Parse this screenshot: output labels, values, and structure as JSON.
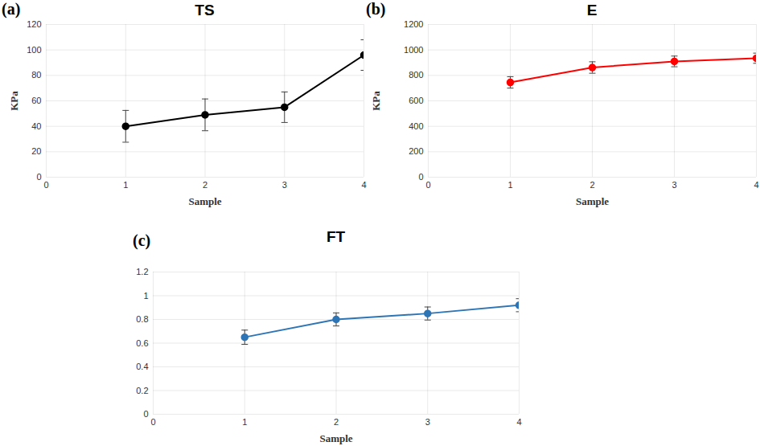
{
  "chart_data": [
    {
      "type": "line",
      "annotation": "(a)",
      "title": "TS",
      "x_label": "Sample",
      "y_label": "KPa",
      "x": [
        1,
        2,
        3,
        4
      ],
      "values": [
        40,
        49,
        55,
        96
      ],
      "errors": [
        12.5,
        12.5,
        12,
        12
      ],
      "color": "#000000",
      "marker": "circle",
      "xlim": [
        0,
        4
      ],
      "xticks": [
        0,
        1,
        2,
        3,
        4
      ],
      "ylim": [
        0,
        120
      ],
      "yticks": [
        0,
        20,
        40,
        60,
        80,
        100,
        120
      ],
      "grid": true
    },
    {
      "type": "line",
      "annotation": "(b)",
      "title": "E",
      "x_label": "Sample",
      "y_label": "KPa",
      "x": [
        1,
        2,
        3,
        4
      ],
      "values": [
        745,
        862,
        910,
        935
      ],
      "errors": [
        45,
        45,
        42,
        40
      ],
      "color": "#ff0000",
      "marker": "circle",
      "xlim": [
        0,
        4
      ],
      "xticks": [
        0,
        1,
        2,
        3,
        4
      ],
      "ylim": [
        0,
        1200
      ],
      "yticks": [
        0,
        200,
        400,
        600,
        800,
        1000,
        1200
      ],
      "grid": true
    },
    {
      "type": "line",
      "annotation": "(c)",
      "title": "FT",
      "x_label": "Sample",
      "x": [
        1,
        2,
        3,
        4
      ],
      "values": [
        0.65,
        0.8,
        0.85,
        0.92
      ],
      "errors": [
        0.06,
        0.055,
        0.055,
        0.055
      ],
      "color": "#2e75b6",
      "marker": "circle",
      "xlim": [
        0,
        4
      ],
      "xticks": [
        0,
        1,
        2,
        3,
        4
      ],
      "ylim": [
        0,
        1.2
      ],
      "yticks": [
        0,
        0.2,
        0.4,
        0.6,
        0.8,
        1,
        1.2
      ],
      "grid": true
    }
  ]
}
